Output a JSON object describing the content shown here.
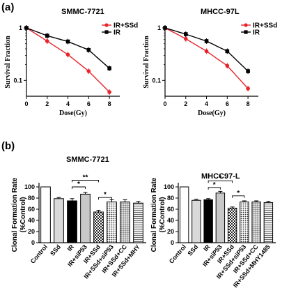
{
  "panels": {
    "a": "(a)",
    "b": "(b)"
  },
  "chart_data": [
    {
      "type": "line",
      "title": "SMMC-7721",
      "xlabel": "Dose(Gy)",
      "ylabel": "Survival Fraction",
      "yscale": "log",
      "xlim": [
        0,
        9
      ],
      "ylim": [
        0.05,
        1
      ],
      "x_ticks": [
        "0",
        "2",
        "4",
        "6",
        "8"
      ],
      "y_ticks": [
        "1",
        "0.1"
      ],
      "legend_position": "top-right",
      "series": [
        {
          "name": "IR+SSd",
          "color": "#e8232a",
          "marker": "circle",
          "x": [
            0,
            2,
            4,
            6,
            8
          ],
          "y": [
            1.0,
            0.56,
            0.31,
            0.15,
            0.06
          ]
        },
        {
          "name": "IR",
          "color": "#000000",
          "marker": "square",
          "x": [
            0,
            2,
            4,
            6,
            8
          ],
          "y": [
            1.0,
            0.71,
            0.55,
            0.38,
            0.17
          ]
        }
      ]
    },
    {
      "type": "line",
      "title": "MHCC-97L",
      "xlabel": "Dose(Gy)",
      "ylabel": "Survival Fraction",
      "yscale": "log",
      "xlim": [
        0,
        9
      ],
      "ylim": [
        0.05,
        1
      ],
      "x_ticks": [
        "0",
        "2",
        "4",
        "6",
        "8"
      ],
      "y_ticks": [
        "1",
        "0.1"
      ],
      "legend_position": "top-right",
      "series": [
        {
          "name": "IR+SSd",
          "color": "#e8232a",
          "marker": "circle",
          "x": [
            0,
            2,
            4,
            6,
            8
          ],
          "y": [
            1.0,
            0.62,
            0.36,
            0.19,
            0.07
          ]
        },
        {
          "name": "IR",
          "color": "#000000",
          "marker": "square",
          "x": [
            0,
            2,
            4,
            6,
            8
          ],
          "y": [
            1.0,
            0.76,
            0.56,
            0.36,
            0.15
          ]
        }
      ]
    },
    {
      "type": "bar",
      "title": "SMMC-7721",
      "ylabel": "Clonal Formation Rate\n(%Control)",
      "ylim": [
        0,
        100
      ],
      "y_ticks": [
        "0",
        "20",
        "40",
        "60",
        "80",
        "100"
      ],
      "categories": [
        "Control",
        "SSd",
        "IR",
        "IR+siP53",
        "IR+SSd",
        "IR+SSd+siP53",
        "IR+SSd+CC",
        "IR+SSd+MHY"
      ],
      "values": [
        100,
        79,
        75,
        87,
        55,
        73,
        73,
        71
      ],
      "errors": [
        0,
        2,
        4,
        3,
        3,
        4,
        4,
        3
      ],
      "significance": [
        {
          "label": "**",
          "from": 2,
          "to": 4
        },
        {
          "label": "*",
          "from": 2,
          "to": 3
        },
        {
          "label": "*",
          "from": 4,
          "to": 5
        }
      ]
    },
    {
      "type": "bar",
      "title": "MHCC97-L",
      "ylabel": "Clonal Formation Rate\n(%Control)",
      "ylim": [
        0,
        100
      ],
      "y_ticks": [
        "0",
        "20",
        "40",
        "60",
        "80",
        "100"
      ],
      "categories": [
        "Control",
        "SSd",
        "IR",
        "IR+siP53",
        "IR+SSd",
        "IR+SSd+siP53",
        "IR+SSd+CC",
        "IR+SSd+MHY1485"
      ],
      "values": [
        100,
        76,
        77,
        89,
        62,
        73,
        73,
        72
      ],
      "errors": [
        0,
        2,
        2,
        3,
        2,
        2,
        2,
        2
      ],
      "significance": [
        {
          "label": "*",
          "from": 2,
          "to": 4
        },
        {
          "label": "*",
          "from": 2,
          "to": 3
        },
        {
          "label": "*",
          "from": 4,
          "to": 5
        }
      ]
    }
  ]
}
